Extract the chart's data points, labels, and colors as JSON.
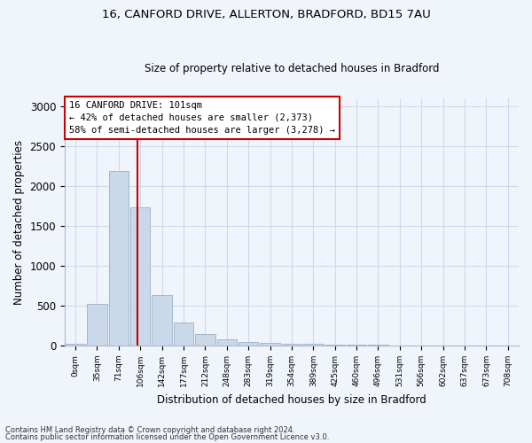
{
  "title1": "16, CANFORD DRIVE, ALLERTON, BRADFORD, BD15 7AU",
  "title2": "Size of property relative to detached houses in Bradford",
  "xlabel": "Distribution of detached houses by size in Bradford",
  "ylabel": "Number of detached properties",
  "bar_values": [
    25,
    520,
    2185,
    1730,
    635,
    290,
    150,
    75,
    45,
    30,
    20,
    20,
    15,
    10,
    8,
    5,
    5,
    3,
    3,
    3
  ],
  "bar_labels": [
    "0sqm",
    "35sqm",
    "71sqm",
    "106sqm",
    "142sqm",
    "177sqm",
    "212sqm",
    "248sqm",
    "283sqm",
    "319sqm",
    "354sqm",
    "389sqm",
    "425sqm",
    "460sqm",
    "496sqm",
    "531sqm",
    "566sqm",
    "602sqm",
    "637sqm",
    "673sqm",
    "708sqm"
  ],
  "bar_color": "#c9d9ea",
  "bar_edge_color": "#9ab0c8",
  "vline_color": "#cc0000",
  "annotation_box_text": "16 CANFORD DRIVE: 101sqm\n← 42% of detached houses are smaller (2,373)\n58% of semi-detached houses are larger (3,278) →",
  "ylim": [
    0,
    3100
  ],
  "yticks": [
    0,
    500,
    1000,
    1500,
    2000,
    2500,
    3000
  ],
  "footer1": "Contains HM Land Registry data © Crown copyright and database right 2024.",
  "footer2": "Contains public sector information licensed under the Open Government Licence v3.0.",
  "bg_color": "#f0f4fb",
  "grid_color": "#d0d8ec"
}
